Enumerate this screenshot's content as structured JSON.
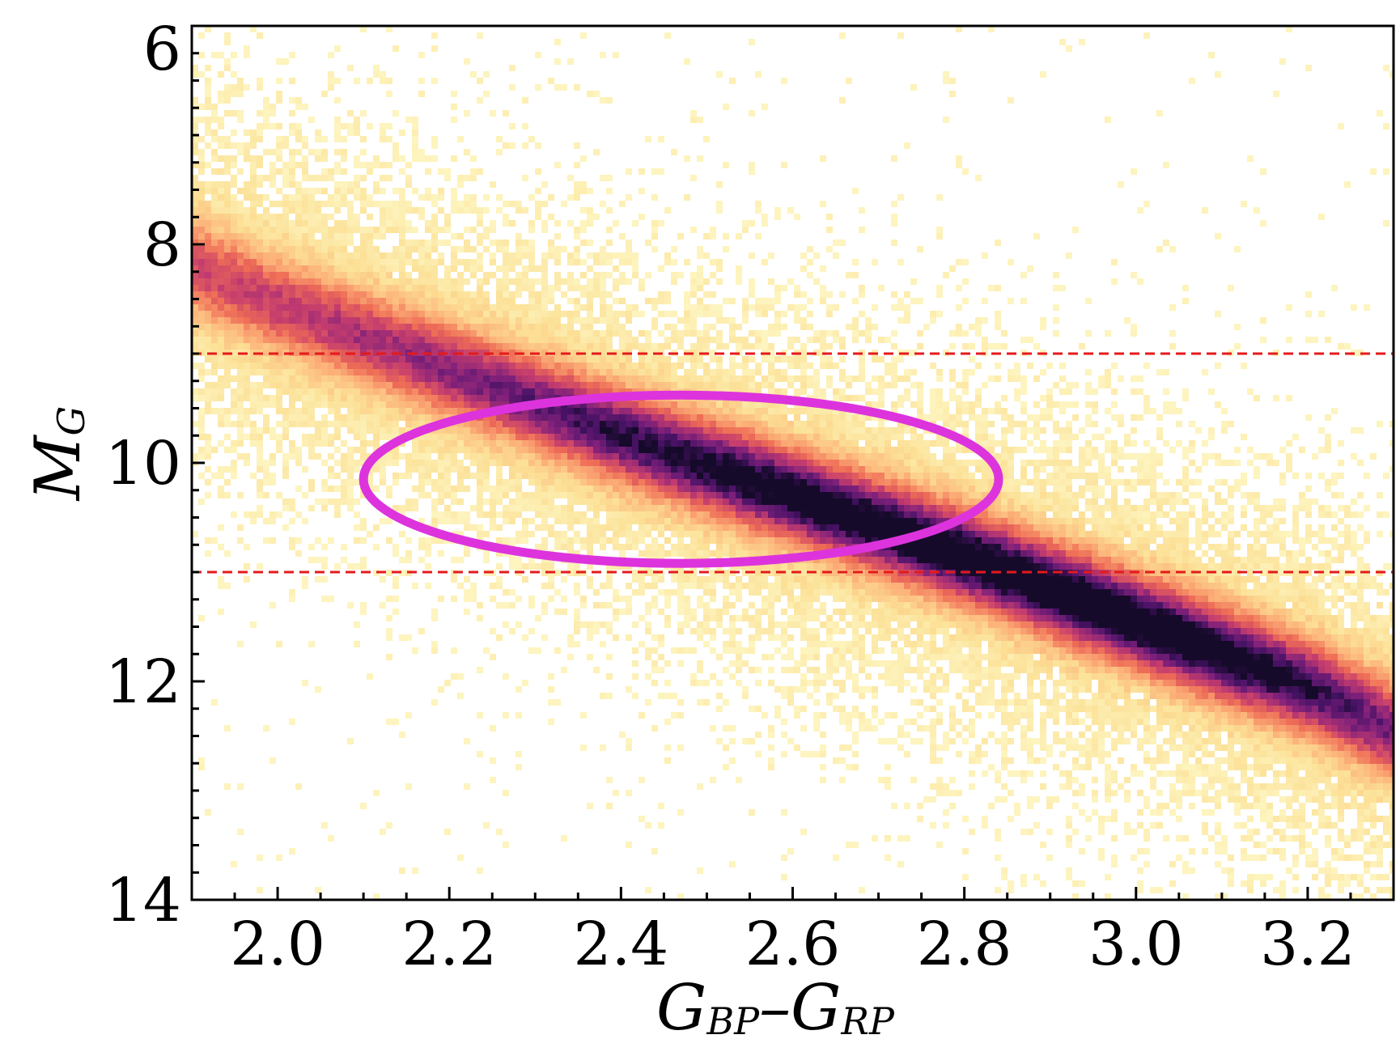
{
  "chart_data": {
    "type": "heatmap",
    "title": "",
    "xlabel": {
      "main1": "G",
      "sub1": "BP",
      "sep": "–",
      "main2": "G",
      "sub2": "RP"
    },
    "ylabel": {
      "main": "M",
      "sub": "G"
    },
    "xlim": [
      1.9,
      3.3
    ],
    "ylim": [
      14,
      6
    ],
    "y_inverted": true,
    "xticks": [
      2.0,
      2.2,
      2.4,
      2.6,
      2.8,
      3.0,
      3.2
    ],
    "xtick_labels": [
      "2.0",
      "2.2",
      "2.4",
      "2.6",
      "2.8",
      "3.0",
      "3.2"
    ],
    "yticks": [
      6,
      8,
      10,
      12,
      14
    ],
    "ytick_labels": [
      "6",
      "8",
      "10",
      "12",
      "14"
    ],
    "grid": false,
    "colormap": "magma_r",
    "colors": {
      "low": "#fdf5bf",
      "mid_low": "#fcc08f",
      "mid": "#f06b58",
      "mid_high": "#b5357a",
      "high": "#5c1a7a",
      "peak": "#1c0b2c",
      "highlight_ellipse": "#dd33dd",
      "reference_lines": "#e41a1c"
    },
    "main_sequence_ridge": {
      "x": [
        1.9,
        2.0,
        2.2,
        2.4,
        2.6,
        2.8,
        3.0,
        3.2,
        3.3
      ],
      "y": [
        8.2,
        8.55,
        9.15,
        9.75,
        10.3,
        10.85,
        11.45,
        12.05,
        12.45
      ]
    },
    "horizontal_reference_lines": [
      {
        "y": 9.0,
        "style": "dashed"
      },
      {
        "y": 11.0,
        "style": "dashed"
      }
    ],
    "highlight_ellipse": {
      "center_x": 2.47,
      "center_y": 10.15,
      "half_width_x": 0.37,
      "half_height_y": 0.77
    }
  }
}
